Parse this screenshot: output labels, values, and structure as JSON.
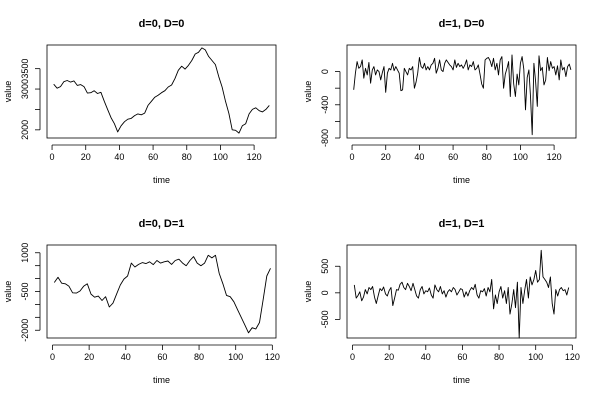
{
  "chart_data": [
    {
      "type": "line",
      "title": "d=0, D=0",
      "xlabel": "time",
      "ylabel": "value",
      "xlim": [
        -3,
        133
      ],
      "ylim": [
        1800,
        4080
      ],
      "x_ticks": [
        0,
        20,
        40,
        60,
        80,
        100,
        120
      ],
      "y_ticks": [
        2000,
        2500,
        3000,
        3500
      ],
      "y_ticks_labeled": [
        2000,
        3000,
        3500
      ],
      "grid": false,
      "color": "#000000",
      "series": [
        {
          "x": [
            1,
            3,
            5,
            7,
            9,
            11,
            13,
            15,
            17,
            19,
            21,
            23,
            25,
            27,
            29,
            31,
            33,
            35,
            37,
            39,
            41,
            43,
            45,
            47,
            49,
            51,
            53,
            55,
            57,
            59,
            61,
            63,
            65,
            67,
            69,
            71,
            73,
            75,
            77,
            79,
            81,
            83,
            85,
            87,
            89,
            91,
            93,
            95,
            97,
            99,
            101,
            103,
            105,
            107,
            109,
            111,
            113,
            115,
            117,
            119,
            121,
            123,
            125,
            127,
            129
          ],
          "y": [
            3120,
            3020,
            3060,
            3180,
            3210,
            3170,
            3200,
            3090,
            3110,
            3060,
            2900,
            2910,
            2960,
            2890,
            2920,
            2700,
            2500,
            2300,
            2150,
            1950,
            2100,
            2200,
            2260,
            2280,
            2350,
            2390,
            2370,
            2410,
            2600,
            2700,
            2800,
            2850,
            2910,
            2960,
            3050,
            3100,
            3260,
            3460,
            3560,
            3490,
            3580,
            3700,
            3860,
            3900,
            4010,
            3960,
            3800,
            3700,
            3600,
            3300,
            3050,
            2700,
            2400,
            2000,
            1990,
            1920,
            2100,
            2150,
            2390,
            2500,
            2540,
            2470,
            2440,
            2500,
            2600
          ]
        }
      ]
    },
    {
      "type": "line",
      "title": "d=1, D=0",
      "xlabel": "time",
      "ylabel": "value",
      "xlim": [
        -3,
        133
      ],
      "ylim": [
        -800,
        320
      ],
      "x_ticks": [
        0,
        20,
        40,
        60,
        80,
        100,
        120
      ],
      "y_ticks": [
        -800,
        -600,
        -400,
        -200,
        0
      ],
      "y_ticks_labeled": [
        -800,
        -400,
        0
      ],
      "grid": false,
      "color": "#000000",
      "series": [
        {
          "x": [
            1,
            2,
            3,
            4,
            5,
            6,
            7,
            8,
            9,
            10,
            11,
            12,
            13,
            14,
            15,
            16,
            17,
            18,
            19,
            20,
            21,
            22,
            23,
            24,
            25,
            26,
            27,
            28,
            29,
            30,
            31,
            32,
            33,
            34,
            35,
            36,
            37,
            38,
            39,
            40,
            41,
            42,
            43,
            44,
            45,
            46,
            47,
            48,
            49,
            50,
            51,
            52,
            53,
            54,
            55,
            56,
            57,
            58,
            59,
            60,
            61,
            62,
            63,
            64,
            65,
            66,
            67,
            68,
            69,
            70,
            71,
            72,
            73,
            74,
            75,
            76,
            77,
            78,
            79,
            80,
            81,
            82,
            83,
            84,
            85,
            86,
            87,
            88,
            89,
            90,
            91,
            92,
            93,
            94,
            95,
            96,
            97,
            98,
            99,
            100,
            101,
            102,
            103,
            104,
            105,
            106,
            107,
            108,
            109,
            110,
            111,
            112,
            113,
            114,
            115,
            116,
            117,
            118,
            119,
            120,
            121,
            122,
            123,
            124,
            125,
            126,
            127,
            128,
            129,
            130
          ],
          "y": [
            -220,
            -20,
            120,
            40,
            60,
            140,
            -80,
            40,
            -40,
            110,
            -140,
            20,
            60,
            -40,
            20,
            0,
            -100,
            -10,
            60,
            -250,
            -20,
            40,
            20,
            100,
            10,
            60,
            20,
            -20,
            -230,
            -220,
            40,
            0,
            -40,
            40,
            20,
            60,
            -200,
            -130,
            -20,
            170,
            60,
            40,
            100,
            20,
            60,
            20,
            80,
            100,
            160,
            -20,
            40,
            140,
            20,
            0,
            100,
            140,
            110,
            80,
            60,
            20,
            140,
            50,
            100,
            60,
            80,
            40,
            80,
            140,
            20,
            80,
            60,
            120,
            20,
            40,
            80,
            -30,
            -150,
            -200,
            140,
            160,
            170,
            130,
            60,
            160,
            20,
            100,
            -40,
            140,
            180,
            -200,
            -30,
            40,
            120,
            -300,
            200,
            -150,
            -300,
            -30,
            -160,
            100,
            180,
            30,
            -460,
            -70,
            20,
            -300,
            -760,
            100,
            -120,
            -420,
            190,
            10,
            50,
            -160,
            -100,
            170,
            10,
            120,
            40,
            60,
            -40,
            70,
            -100,
            140,
            20,
            50,
            -60,
            60,
            90,
            20
          ]
        }
      ]
    },
    {
      "type": "line",
      "title": "d=0, D=1",
      "xlabel": "time",
      "ylabel": "value",
      "xlim": [
        -3,
        122
      ],
      "ylim": [
        -2300,
        1300
      ],
      "x_ticks": [
        0,
        20,
        40,
        60,
        80,
        100,
        120
      ],
      "y_ticks": [
        -2000,
        -1500,
        -1000,
        -500,
        0,
        500,
        1000
      ],
      "y_ticks_labeled": [
        -2000,
        -500,
        1000
      ],
      "grid": false,
      "color": "#000000",
      "series": [
        {
          "x": [
            1,
            3,
            5,
            7,
            9,
            11,
            13,
            15,
            17,
            19,
            21,
            23,
            25,
            27,
            29,
            31,
            33,
            35,
            37,
            39,
            41,
            43,
            45,
            47,
            49,
            51,
            53,
            55,
            57,
            59,
            61,
            63,
            65,
            67,
            69,
            71,
            73,
            75,
            77,
            79,
            81,
            83,
            85,
            87,
            89,
            91,
            93,
            95,
            97,
            99,
            101,
            103,
            105,
            107,
            109,
            111,
            113,
            115,
            117,
            119
          ],
          "y": [
            -150,
            50,
            -180,
            -200,
            -300,
            -550,
            -560,
            -480,
            -300,
            -200,
            -600,
            -720,
            -680,
            -850,
            -700,
            -1100,
            -950,
            -600,
            -250,
            -20,
            100,
            600,
            450,
            550,
            620,
            580,
            650,
            540,
            700,
            600,
            650,
            680,
            550,
            700,
            750,
            600,
            500,
            700,
            850,
            600,
            500,
            600,
            900,
            800,
            900,
            200,
            -200,
            -650,
            -700,
            -900,
            -1200,
            -1500,
            -1800,
            -2100,
            -1900,
            -1950,
            -1700,
            -800,
            100,
            400
          ]
        }
      ]
    },
    {
      "type": "line",
      "title": "d=1, D=1",
      "xlabel": "time",
      "ylabel": "value",
      "xlim": [
        -3,
        122
      ],
      "ylim": [
        -850,
        900
      ],
      "x_ticks": [
        0,
        20,
        40,
        60,
        80,
        100,
        120
      ],
      "y_ticks": [
        -500,
        0,
        500
      ],
      "y_ticks_labeled": [
        -500,
        0,
        500
      ],
      "grid": false,
      "color": "#000000",
      "series": [
        {
          "x": [
            1,
            2,
            3,
            4,
            5,
            6,
            7,
            8,
            9,
            10,
            11,
            12,
            13,
            14,
            15,
            16,
            17,
            18,
            19,
            20,
            21,
            22,
            23,
            24,
            25,
            26,
            27,
            28,
            29,
            30,
            31,
            32,
            33,
            34,
            35,
            36,
            37,
            38,
            39,
            40,
            41,
            42,
            43,
            44,
            45,
            46,
            47,
            48,
            49,
            50,
            51,
            52,
            53,
            54,
            55,
            56,
            57,
            58,
            59,
            60,
            61,
            62,
            63,
            64,
            65,
            66,
            67,
            68,
            69,
            70,
            71,
            72,
            73,
            74,
            75,
            76,
            77,
            78,
            79,
            80,
            81,
            82,
            83,
            84,
            85,
            86,
            87,
            88,
            89,
            90,
            91,
            92,
            93,
            94,
            95,
            96,
            97,
            98,
            99,
            100,
            101,
            102,
            103,
            104,
            105,
            106,
            107,
            108,
            109,
            110,
            111,
            112,
            113,
            114,
            115,
            116,
            117,
            118
          ],
          "y": [
            150,
            -100,
            -50,
            20,
            -150,
            -80,
            60,
            -20,
            100,
            60,
            120,
            -80,
            -200,
            -60,
            80,
            40,
            110,
            -20,
            -60,
            40,
            100,
            -240,
            -100,
            60,
            50,
            160,
            200,
            100,
            60,
            180,
            120,
            40,
            180,
            60,
            -60,
            -100,
            60,
            120,
            -20,
            40,
            20,
            90,
            -40,
            -100,
            150,
            60,
            20,
            120,
            -20,
            40,
            -80,
            20,
            60,
            20,
            100,
            60,
            -40,
            20,
            80,
            60,
            -80,
            20,
            -60,
            40,
            100,
            60,
            160,
            -40,
            -100,
            40,
            20,
            80,
            -60,
            100,
            20,
            250,
            -300,
            -40,
            -200,
            20,
            120,
            -100,
            40,
            -200,
            100,
            -400,
            -200,
            60,
            -280,
            200,
            -850,
            100,
            -200,
            50,
            250,
            -100,
            300,
            150,
            250,
            420,
            200,
            250,
            800,
            300,
            250,
            200,
            100,
            300,
            -200,
            -400,
            60,
            -60,
            60,
            100,
            40,
            60,
            -40,
            100
          ]
        }
      ]
    }
  ]
}
